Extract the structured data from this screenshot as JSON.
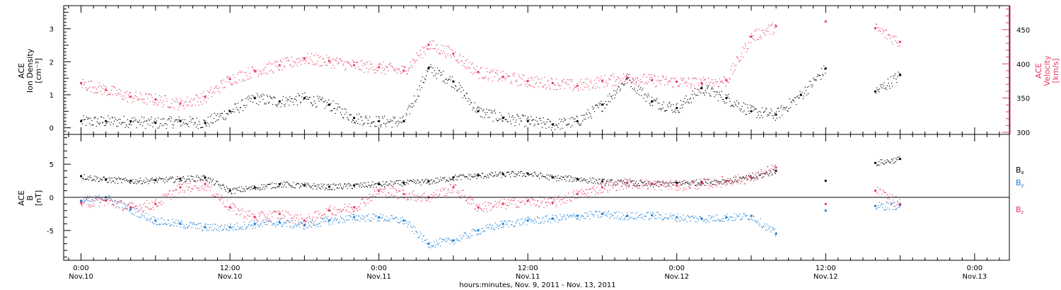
{
  "chart_data": [
    {
      "type": "scatter",
      "panel": "top",
      "ylabel_left": [
        "ACE",
        "Ion Density",
        "[cm⁻³]"
      ],
      "ylabel_right": [
        "ACE",
        "Velocity",
        "[km/s]"
      ],
      "ylim_left": [
        -0.2,
        3.7
      ],
      "ylim_right": [
        297,
        485
      ],
      "yticks_left": [
        0,
        1,
        2,
        3
      ],
      "yticks_right": [
        300,
        350,
        400,
        450
      ],
      "colors": {
        "density": "#000000",
        "velocity": "#e8365f"
      },
      "series": [
        {
          "name": "",
          "axis": "left",
          "color": "#000000",
          "x_hours": [
            0,
            2,
            4,
            6,
            8,
            10,
            12,
            14,
            16,
            18,
            20,
            22,
            24,
            26,
            28,
            30,
            32,
            34,
            36,
            38,
            40,
            42,
            44,
            46,
            48,
            50,
            52,
            54,
            56,
            58,
            60,
            62,
            64,
            66
          ],
          "values": [
            0.2,
            0.2,
            0.2,
            0.15,
            0.2,
            0.15,
            0.5,
            0.9,
            0.8,
            0.9,
            0.7,
            0.3,
            0.2,
            0.2,
            1.8,
            1.4,
            0.5,
            0.3,
            0.2,
            0.1,
            0.2,
            0.7,
            1.5,
            0.8,
            0.6,
            1.2,
            0.9,
            0.5,
            0.4,
            1.0,
            1.8,
            null,
            1.1,
            1.6
          ]
        },
        {
          "name": "",
          "axis": "right",
          "color": "#e8365f",
          "x_hours": [
            0,
            2,
            4,
            6,
            8,
            10,
            12,
            14,
            16,
            18,
            20,
            22,
            24,
            26,
            28,
            30,
            32,
            34,
            36,
            38,
            40,
            42,
            44,
            46,
            48,
            50,
            52,
            54,
            56,
            58,
            60,
            62,
            64,
            66
          ],
          "values": [
            372,
            362,
            352,
            348,
            342,
            352,
            378,
            390,
            398,
            408,
            404,
            398,
            395,
            390,
            428,
            415,
            388,
            381,
            375,
            372,
            368,
            375,
            380,
            376,
            374,
            372,
            376,
            440,
            455,
            null,
            462,
            null,
            452,
            432
          ]
        }
      ]
    },
    {
      "type": "scatter",
      "panel": "bottom",
      "ylabel_left": [
        "ACE",
        "B",
        "[nT]"
      ],
      "ylim": [
        -9.5,
        9.5
      ],
      "yticks": [
        -5,
        0,
        5
      ],
      "legend": [
        {
          "label": "B",
          "sub": "x",
          "color": "#000000"
        },
        {
          "label": "B",
          "sub": "y",
          "color": "#1a7fd6"
        },
        {
          "label": "B",
          "sub": "z",
          "color": "#e8365f"
        }
      ],
      "series": [
        {
          "name": "Bx",
          "color": "#000000",
          "x_hours": [
            0,
            2,
            4,
            6,
            8,
            10,
            12,
            14,
            16,
            18,
            20,
            22,
            24,
            26,
            28,
            30,
            32,
            34,
            36,
            38,
            40,
            42,
            44,
            46,
            48,
            50,
            52,
            54,
            56,
            58,
            60,
            62,
            64,
            66
          ],
          "values": [
            3.2,
            2.7,
            2.5,
            2.6,
            2.8,
            3.0,
            1.0,
            1.5,
            2.0,
            1.8,
            1.6,
            1.8,
            2.0,
            2.2,
            2.4,
            3.0,
            3.3,
            3.5,
            3.6,
            3.0,
            2.8,
            2.4,
            2.2,
            2.0,
            2.2,
            2.3,
            2.5,
            3.0,
            4.0,
            null,
            2.5,
            null,
            5.2,
            5.8
          ]
        },
        {
          "name": "By",
          "color": "#1a7fd6",
          "x_hours": [
            0,
            2,
            4,
            6,
            8,
            10,
            12,
            14,
            16,
            18,
            20,
            22,
            24,
            26,
            28,
            30,
            32,
            34,
            36,
            38,
            40,
            42,
            44,
            46,
            48,
            50,
            52,
            54,
            56,
            58,
            60,
            62,
            64,
            66
          ],
          "values": [
            -0.5,
            0.0,
            -1.8,
            -3.5,
            -4.0,
            -4.5,
            -4.5,
            -4.0,
            -3.8,
            -4.2,
            -3.5,
            -3.0,
            -3.0,
            -3.5,
            -7.0,
            -6.5,
            -5.0,
            -4.0,
            -3.5,
            -3.2,
            -2.8,
            -2.5,
            -2.8,
            -2.7,
            -3.0,
            -3.2,
            -3.0,
            -2.8,
            -5.5,
            null,
            -2.0,
            null,
            -1.3,
            -1.2
          ]
        },
        {
          "name": "Bz",
          "color": "#e8365f",
          "x_hours": [
            0,
            2,
            4,
            6,
            8,
            10,
            12,
            14,
            16,
            18,
            20,
            22,
            24,
            26,
            28,
            30,
            32,
            34,
            36,
            38,
            40,
            42,
            44,
            46,
            48,
            50,
            52,
            54,
            56,
            58,
            60,
            62,
            64,
            66
          ],
          "values": [
            -0.8,
            -0.5,
            -1.5,
            -1.0,
            1.5,
            2.0,
            -1.5,
            -3.0,
            -2.5,
            -3.5,
            -2.0,
            -1.5,
            1.0,
            0.5,
            0.0,
            1.5,
            -1.5,
            -1.0,
            -0.5,
            -0.8,
            0.5,
            1.5,
            2.2,
            2.0,
            1.8,
            2.1,
            2.5,
            3.0,
            4.5,
            null,
            -1.0,
            null,
            1.0,
            -1.0
          ]
        }
      ]
    }
  ],
  "x_axis": {
    "tick_hours": [
      0,
      12,
      24,
      36,
      48,
      60,
      72
    ],
    "tick_labels": [
      {
        "time": "0:00",
        "date": "Nov.10"
      },
      {
        "time": "12:00",
        "date": "Nov.10"
      },
      {
        "time": "0:00",
        "date": "Nov.11"
      },
      {
        "time": "12:00",
        "date": "Nov.11"
      },
      {
        "time": "0:00",
        "date": "Nov.12"
      },
      {
        "time": "12:00",
        "date": "Nov.12"
      },
      {
        "time": "0:00",
        "date": "Nov.13"
      }
    ],
    "xlim_hours": [
      -1.4,
      74.8
    ],
    "xlabel": "hours:minutes, Nov. 9, 2011 - Nov. 13, 2011"
  }
}
